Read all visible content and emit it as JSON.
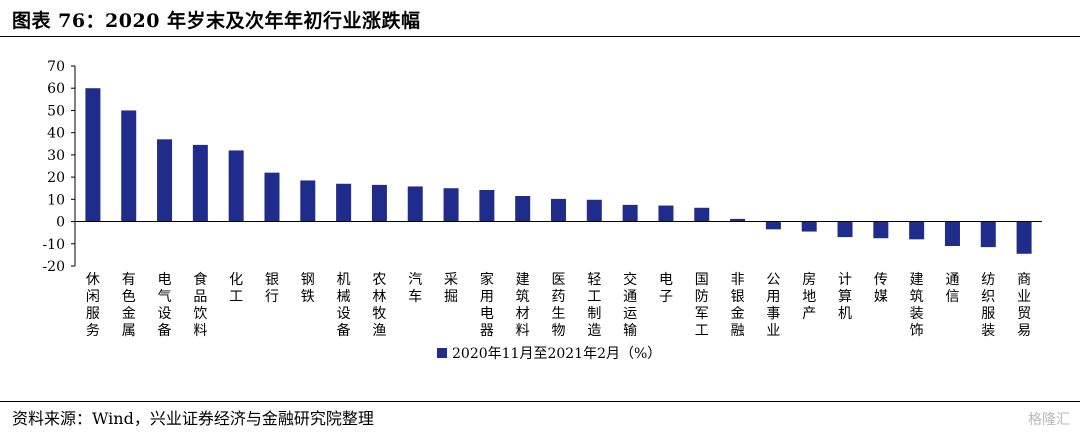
{
  "header": {
    "title": "图表 76：2020 年岁末及次年年初行业涨跌幅"
  },
  "footer": {
    "source": "资料来源：Wind，兴业证券经济与金融研究院整理",
    "watermark": "格隆汇"
  },
  "colors": {
    "bar": "#1f2c8c"
  },
  "chart_data": {
    "type": "bar",
    "categories": [
      "休闲服务",
      "有色金属",
      "电气设备",
      "食品饮料",
      "化工",
      "银行",
      "钢铁",
      "机械设备",
      "农林牧渔",
      "汽车",
      "采掘",
      "家用电器",
      "建筑材料",
      "医药生物",
      "轻工制造",
      "交通运输",
      "电子",
      "国防军工",
      "非银金融",
      "公用事业",
      "房地产",
      "计算机",
      "传媒",
      "建筑装饰",
      "通信",
      "纺织服装",
      "商业贸易"
    ],
    "series": [
      {
        "name": "2020年11月至2021年2月（%）",
        "values": [
          60,
          50,
          37,
          34.5,
          32,
          22,
          18.5,
          17,
          16.5,
          15.8,
          15,
          14.2,
          11.5,
          10.2,
          9.8,
          7.5,
          7.2,
          6.2,
          1.2,
          -3.5,
          -4.5,
          -7,
          -7.5,
          -8,
          -11,
          -11.5,
          -14.5
        ]
      }
    ],
    "yticks": [
      "70",
      "60",
      "50",
      "40",
      "30",
      "20",
      "10",
      "0",
      "-10",
      "-20"
    ],
    "ylim": [
      -20,
      70
    ],
    "legend_position": "bottom-center",
    "grid": false
  }
}
